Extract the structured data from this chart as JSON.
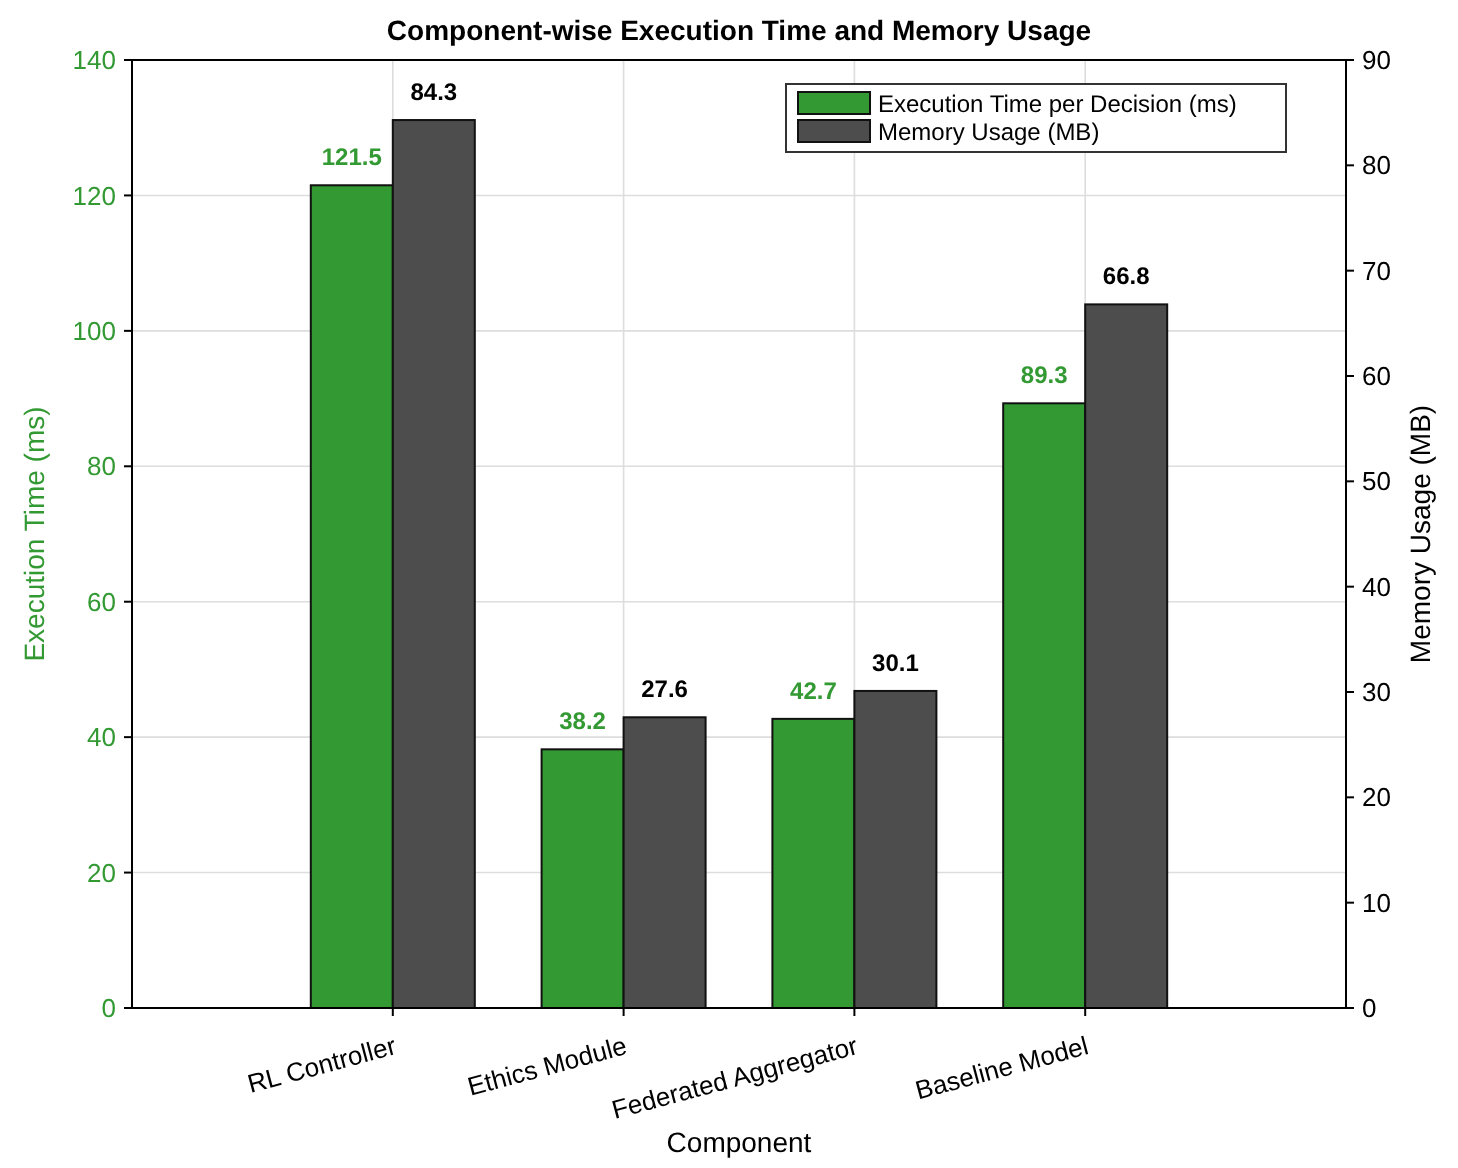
{
  "chart_data": {
    "type": "bar",
    "title": "Component-wise Execution Time and Memory Usage",
    "xlabel": "Component",
    "ylabel": "Execution Time (ms)",
    "y2label": "Memory Usage (MB)",
    "categories": [
      "RL Controller",
      "Ethics Module",
      "Federated Aggregator",
      "Baseline Model"
    ],
    "series": [
      {
        "name": "Execution Time per Decision (ms)",
        "color": "#339933",
        "values": [
          121.5,
          38.2,
          42.7,
          89.3
        ]
      },
      {
        "name": "Memory Usage (MB)",
        "color": "#4d4d4d",
        "values": [
          84.3,
          27.6,
          30.1,
          66.8
        ],
        "axis": "y2"
      }
    ],
    "ylim": [
      0,
      140
    ],
    "yticks": [
      0,
      20,
      40,
      60,
      80,
      100,
      120,
      140
    ],
    "y2lim": [
      0,
      90
    ],
    "y2ticks": [
      0,
      10,
      20,
      30,
      40,
      50,
      60,
      70,
      80,
      90
    ],
    "data_labels": true,
    "grid": true,
    "legend": "top right"
  }
}
